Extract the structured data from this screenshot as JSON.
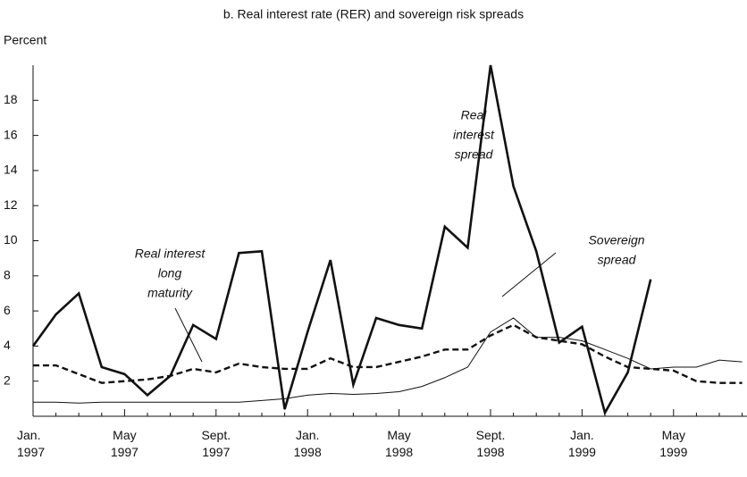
{
  "chart_data": {
    "type": "line",
    "title": "b. Real interest rate (RER) and sovereign risk spreads",
    "y_label": "Percent",
    "categories": [
      "Jan. 1997",
      null,
      null,
      null,
      "May 1997",
      null,
      null,
      null,
      "Sept. 1997",
      null,
      null,
      null,
      "Jan. 1998",
      null,
      null,
      null,
      "May 1998",
      null,
      null,
      null,
      "Sept. 1998",
      null,
      null,
      null,
      "Jan. 1999",
      null,
      null,
      null,
      "May 1999",
      null,
      null,
      null
    ],
    "series": [
      {
        "name": "Real interest spread",
        "color": "#111111",
        "width": 2.6,
        "dash": "none",
        "values": [
          4.0,
          5.8,
          7.0,
          2.8,
          2.4,
          1.2,
          2.3,
          5.2,
          4.4,
          9.3,
          9.4,
          0.4,
          4.8,
          8.9,
          1.8,
          5.6,
          5.2,
          5.0,
          10.8,
          9.6,
          20.0,
          13.1,
          9.4,
          4.2,
          5.1,
          0.2,
          2.5,
          7.8,
          null,
          null,
          null,
          null
        ]
      },
      {
        "name": "Sovereign spread",
        "color": "#111111",
        "width": 1,
        "dash": "none",
        "values": [
          0.8,
          0.8,
          0.75,
          0.8,
          0.8,
          0.8,
          0.8,
          0.8,
          0.8,
          0.8,
          0.9,
          1.0,
          1.2,
          1.3,
          1.25,
          1.3,
          1.4,
          1.7,
          2.2,
          2.8,
          4.8,
          5.6,
          4.5,
          4.5,
          4.3,
          3.8,
          3.3,
          2.7,
          2.8,
          2.8,
          3.2,
          3.1
        ]
      },
      {
        "name": "Real interest long maturity",
        "color": "#111111",
        "width": 2.4,
        "dash": "7,4",
        "values": [
          2.9,
          2.9,
          2.4,
          1.9,
          2.0,
          2.1,
          2.3,
          2.7,
          2.5,
          3.0,
          2.8,
          2.7,
          2.7,
          3.3,
          2.8,
          2.8,
          3.1,
          3.4,
          3.8,
          3.8,
          4.6,
          5.2,
          4.5,
          4.3,
          4.1,
          3.4,
          2.8,
          2.7,
          2.6,
          2.0,
          1.9,
          1.9
        ]
      }
    ],
    "annotations": [
      {
        "lines": [
          "Real",
          "interest",
          "spread"
        ]
      },
      {
        "lines": [
          "Sovereign",
          "spread"
        ]
      },
      {
        "lines": [
          "Real interest",
          "long",
          "maturity"
        ]
      }
    ],
    "ylim": [
      0,
      20
    ],
    "yticks": [
      2,
      4,
      6,
      8,
      10,
      12,
      14,
      16,
      18
    ]
  }
}
